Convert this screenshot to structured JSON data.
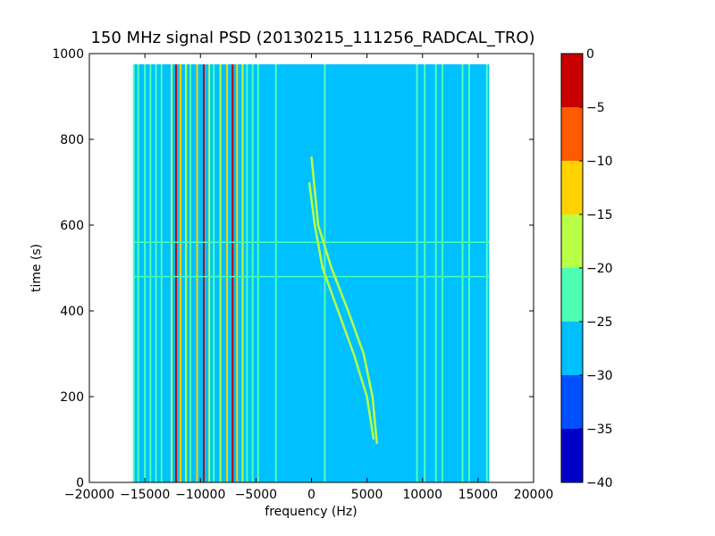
{
  "chart_data": {
    "type": "heatmap",
    "title": "150 MHz signal PSD (20130215_111256_RADCAL_TRO)",
    "xlabel": "frequency (Hz)",
    "ylabel": "time (s)",
    "xlim": [
      -20000,
      20000
    ],
    "ylim": [
      0,
      1000
    ],
    "x_ticks": [
      -20000,
      -15000,
      -10000,
      -5000,
      0,
      5000,
      10000,
      15000,
      20000
    ],
    "x_tick_labels": [
      "−20000",
      "−15000",
      "−10000",
      "−5000",
      "0",
      "5000",
      "10000",
      "15000",
      "20000"
    ],
    "y_ticks": [
      0,
      200,
      400,
      600,
      800,
      1000
    ],
    "y_tick_labels": [
      "0",
      "200",
      "400",
      "600",
      "800",
      "1000"
    ],
    "data_extent": {
      "x": [
        -16000,
        16000
      ],
      "y": [
        0,
        975
      ]
    },
    "background_level": -27.5,
    "colorbar": {
      "range": [
        -40,
        0
      ],
      "ticks": [
        0,
        -5,
        -10,
        -15,
        -20,
        -25,
        -30,
        -35,
        -40
      ],
      "tick_labels": [
        "0",
        "−5",
        "−10",
        "−15",
        "−20",
        "−25",
        "−30",
        "−35",
        "−40"
      ],
      "levels": [
        {
          "range": [
            -40,
            -35
          ],
          "color": "#0000c8"
        },
        {
          "range": [
            -35,
            -30
          ],
          "color": "#0050ff"
        },
        {
          "range": [
            -30,
            -25
          ],
          "color": "#00c0ff"
        },
        {
          "range": [
            -25,
            -20
          ],
          "color": "#4dffb4"
        },
        {
          "range": [
            -20,
            -15
          ],
          "color": "#b8ff45"
        },
        {
          "range": [
            -15,
            -10
          ],
          "color": "#ffd200"
        },
        {
          "range": [
            -10,
            -5
          ],
          "color": "#ff5a00"
        },
        {
          "range": [
            -5,
            0
          ],
          "color": "#c80000"
        }
      ]
    },
    "vertical_lines": [
      {
        "freq": -16000,
        "level": -22.5
      },
      {
        "freq": -15600,
        "level": -22.5
      },
      {
        "freq": -15000,
        "level": -22.5
      },
      {
        "freq": -14500,
        "level": -22.5
      },
      {
        "freq": -14000,
        "level": -22.5
      },
      {
        "freq": -13500,
        "level": -22.5
      },
      {
        "freq": -12600,
        "level": -17.5
      },
      {
        "freq": -12200,
        "level": -2.5
      },
      {
        "freq": -11800,
        "level": -12.5
      },
      {
        "freq": -11300,
        "level": -17.5
      },
      {
        "freq": -10900,
        "level": -22.5
      },
      {
        "freq": -10300,
        "level": -12.5
      },
      {
        "freq": -9700,
        "level": -2.5
      },
      {
        "freq": -9200,
        "level": -17.5
      },
      {
        "freq": -8800,
        "level": -22.5
      },
      {
        "freq": -8200,
        "level": -17.5
      },
      {
        "freq": -7600,
        "level": -12.5
      },
      {
        "freq": -7100,
        "level": -2.5
      },
      {
        "freq": -6700,
        "level": -12.5
      },
      {
        "freq": -6200,
        "level": -17.5
      },
      {
        "freq": -5800,
        "level": -22.5
      },
      {
        "freq": -5300,
        "level": -22.5
      },
      {
        "freq": -4800,
        "level": -22.5
      },
      {
        "freq": -3200,
        "level": -22.5
      },
      {
        "freq": 1200,
        "level": -22.5
      },
      {
        "freq": 9500,
        "level": -22.5
      },
      {
        "freq": 10200,
        "level": -22.5
      },
      {
        "freq": 11200,
        "level": -22.5
      },
      {
        "freq": 11800,
        "level": -22.5
      },
      {
        "freq": 13600,
        "level": -22.5
      },
      {
        "freq": 14200,
        "level": -22.5
      },
      {
        "freq": 15800,
        "level": -22.5
      }
    ],
    "horizontal_lines": [
      {
        "time": 560,
        "level": -22.5
      },
      {
        "time": 480,
        "level": -22.5
      }
    ],
    "drift_tracks": [
      {
        "level": -17.5,
        "points": [
          [
            0,
            760
          ],
          [
            600,
            600
          ],
          [
            1800,
            500
          ],
          [
            3300,
            400
          ],
          [
            4700,
            300
          ],
          [
            5500,
            200
          ],
          [
            5900,
            90
          ]
        ]
      },
      {
        "level": -17.5,
        "points": [
          [
            -200,
            700
          ],
          [
            300,
            600
          ],
          [
            1000,
            500
          ],
          [
            2400,
            400
          ],
          [
            3800,
            300
          ],
          [
            5000,
            200
          ],
          [
            5600,
            100
          ]
        ]
      }
    ]
  }
}
